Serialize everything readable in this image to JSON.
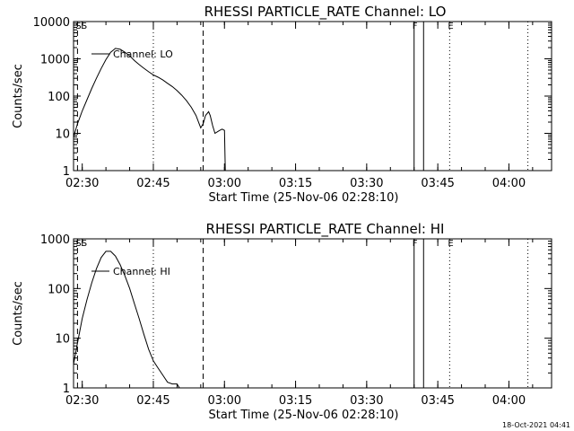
{
  "footer": {
    "timestamp": "18-Oct-2021 04:41"
  },
  "chart_data": [
    {
      "type": "line",
      "title": "RHESSI PARTICLE_RATE Channel: LO",
      "xlabel": "Start Time (25-Nov-06 02:28:10)",
      "ylabel": "Counts/sec",
      "yscale": "log",
      "xlim": [
        "02:28:10",
        "04:09"
      ],
      "ylim": [
        1,
        10000
      ],
      "x_ticks": [
        "02:30",
        "02:45",
        "03:00",
        "03:15",
        "03:30",
        "03:45",
        "04:00"
      ],
      "y_ticks": [
        "1",
        "10",
        "100",
        "1000",
        "10000"
      ],
      "legend": "Channel: LO",
      "legend_position": "top-left",
      "markers": [
        {
          "label": "SS",
          "time": "02:29",
          "style": "dashed"
        },
        {
          "label": "",
          "time": "02:45",
          "style": "dotted"
        },
        {
          "label": "",
          "time": "02:55:30",
          "style": "dashed"
        },
        {
          "label": "F",
          "time": "03:40",
          "style": "solid"
        },
        {
          "label": "",
          "time": "03:42",
          "style": "solid"
        },
        {
          "label": "E",
          "time": "03:47:30",
          "style": "dotted"
        },
        {
          "label": "",
          "time": "04:04",
          "style": "dotted"
        }
      ],
      "series": [
        {
          "name": "Channel: LO",
          "x": [
            "02:28:10",
            "02:29",
            "02:30",
            "02:31",
            "02:32",
            "02:33",
            "02:34",
            "02:35",
            "02:36",
            "02:37",
            "02:38",
            "02:39",
            "02:40",
            "02:41",
            "02:42",
            "02:43",
            "02:44",
            "02:45",
            "02:46",
            "02:47",
            "02:48",
            "02:49",
            "02:50",
            "02:51",
            "02:52",
            "02:53",
            "02:54",
            "02:54:40",
            "02:55",
            "02:55:30",
            "02:56",
            "02:56:40",
            "02:57",
            "02:57:30",
            "02:58",
            "02:58:30",
            "02:59",
            "02:59:30",
            "03:00",
            "03:00:10"
          ],
          "y": [
            8,
            18,
            40,
            80,
            160,
            300,
            550,
            950,
            1500,
            1900,
            1800,
            1500,
            1200,
            900,
            700,
            560,
            450,
            370,
            320,
            270,
            220,
            180,
            140,
            105,
            75,
            50,
            30,
            18,
            14,
            18,
            30,
            38,
            30,
            16,
            10,
            11,
            12,
            13,
            12,
            1
          ]
        }
      ]
    },
    {
      "type": "line",
      "title": "RHESSI PARTICLE_RATE Channel: HI",
      "xlabel": "Start Time (25-Nov-06 02:28:10)",
      "ylabel": "Counts/sec",
      "yscale": "log",
      "xlim": [
        "02:28:10",
        "04:09"
      ],
      "ylim": [
        1,
        1000
      ],
      "x_ticks": [
        "02:30",
        "02:45",
        "03:00",
        "03:15",
        "03:30",
        "03:45",
        "04:00"
      ],
      "y_ticks": [
        "1",
        "10",
        "100",
        "1000"
      ],
      "legend": "Channel: HI",
      "legend_position": "top-left",
      "markers": [
        {
          "label": "SS",
          "time": "02:29",
          "style": "dashed"
        },
        {
          "label": "",
          "time": "02:45",
          "style": "dotted"
        },
        {
          "label": "",
          "time": "02:55:30",
          "style": "dashed"
        },
        {
          "label": "F",
          "time": "03:40",
          "style": "solid"
        },
        {
          "label": "",
          "time": "03:42",
          "style": "solid"
        },
        {
          "label": "E",
          "time": "03:47:30",
          "style": "dotted"
        },
        {
          "label": "",
          "time": "04:04",
          "style": "dotted"
        }
      ],
      "series": [
        {
          "name": "Channel: HI",
          "x": [
            "02:28:10",
            "02:29",
            "02:30",
            "02:31",
            "02:32",
            "02:33",
            "02:34",
            "02:35",
            "02:36",
            "02:37",
            "02:38",
            "02:39",
            "02:40",
            "02:41",
            "02:42",
            "02:43",
            "02:44",
            "02:45",
            "02:46",
            "02:47",
            "02:48",
            "02:49",
            "02:50",
            "02:50:30"
          ],
          "y": [
            3,
            8,
            25,
            60,
            130,
            250,
            420,
            560,
            560,
            450,
            300,
            180,
            100,
            50,
            25,
            12,
            6,
            3.5,
            2.5,
            1.8,
            1.3,
            1.2,
            1.2,
            1
          ]
        }
      ]
    }
  ]
}
